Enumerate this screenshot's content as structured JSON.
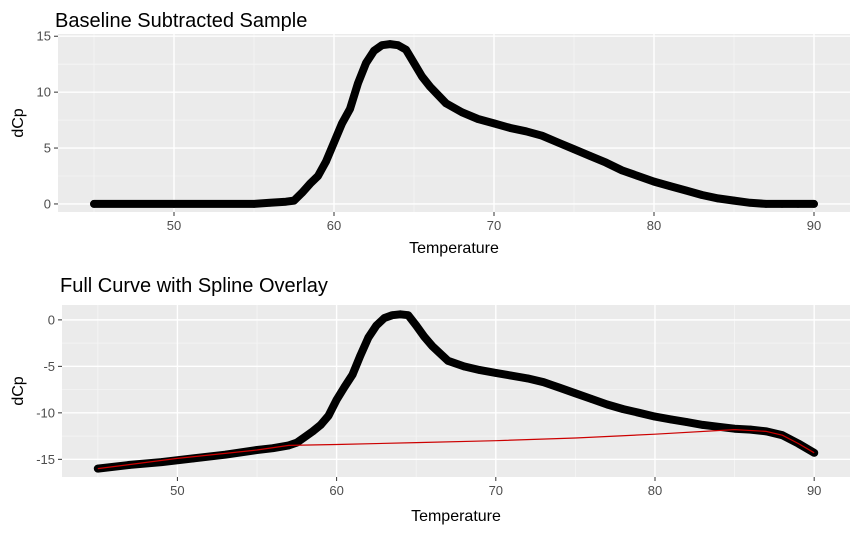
{
  "colors": {
    "panel_background": "#ebebeb",
    "grid_major": "#ffffff",
    "grid_minor": "#f5f5f5",
    "points": "#000000",
    "spline": "#cc0000"
  },
  "chart_data": [
    {
      "type": "scatter",
      "title": "Baseline Subtracted Sample",
      "xlabel": "Temperature",
      "ylabel": "dCp",
      "xlim": [
        42.75,
        92.25
      ],
      "ylim": [
        -0.72,
        15.2
      ],
      "xticks": [
        50,
        60,
        70,
        80,
        90
      ],
      "yticks": [
        0,
        5,
        10,
        15
      ],
      "grid": true,
      "legend": "none",
      "series": [
        {
          "x": [
            45,
            50,
            55,
            56,
            57,
            57.5,
            58,
            58.5,
            59,
            59.5,
            60,
            60.5,
            61,
            61.5,
            62,
            62.5,
            63,
            63.5,
            64,
            64.5,
            65,
            65.5,
            66,
            67,
            68,
            69,
            70,
            71,
            72,
            73,
            74,
            75,
            76,
            77,
            78,
            79,
            80,
            81,
            82,
            83,
            84,
            85,
            86,
            87,
            88,
            89,
            90
          ],
          "y": [
            0,
            0,
            0,
            0.1,
            0.2,
            0.3,
            1.0,
            1.8,
            2.5,
            3.8,
            5.5,
            7.2,
            8.5,
            10.8,
            12.6,
            13.7,
            14.2,
            14.3,
            14.2,
            13.8,
            12.6,
            11.4,
            10.5,
            9.0,
            8.2,
            7.6,
            7.2,
            6.8,
            6.5,
            6.1,
            5.5,
            4.9,
            4.3,
            3.7,
            3.0,
            2.5,
            2.0,
            1.6,
            1.2,
            0.8,
            0.5,
            0.3,
            0.1,
            0,
            0,
            0,
            0
          ]
        }
      ]
    },
    {
      "type": "scatter",
      "title": "Full Curve with Spline Overlay",
      "xlabel": "Temperature",
      "ylabel": "dCp",
      "xlim": [
        42.75,
        92.25
      ],
      "ylim": [
        -16.9,
        1.6
      ],
      "xticks": [
        50,
        60,
        70,
        80,
        90
      ],
      "yticks": [
        -15,
        -10,
        -5,
        0
      ],
      "grid": true,
      "legend": "none",
      "series": [
        {
          "x": [
            45,
            47,
            49,
            51,
            53,
            55,
            56,
            57,
            57.5,
            58,
            58.5,
            59,
            59.5,
            60,
            60.5,
            61,
            61.5,
            62,
            62.5,
            63,
            63.5,
            64,
            64.5,
            65,
            65.5,
            66,
            67,
            68,
            69,
            70,
            71,
            72,
            73,
            74,
            75,
            76,
            77,
            78,
            79,
            80,
            81,
            82,
            83,
            84,
            85,
            86,
            87,
            88,
            89,
            90
          ],
          "y": [
            -16.0,
            -15.6,
            -15.3,
            -14.9,
            -14.5,
            -14.0,
            -13.8,
            -13.5,
            -13.2,
            -12.6,
            -12.0,
            -11.3,
            -10.3,
            -8.6,
            -7.2,
            -5.9,
            -3.8,
            -1.9,
            -0.6,
            0.2,
            0.5,
            0.6,
            0.5,
            -0.6,
            -1.8,
            -2.8,
            -4.4,
            -5.0,
            -5.4,
            -5.7,
            -6.0,
            -6.3,
            -6.7,
            -7.3,
            -7.9,
            -8.5,
            -9.1,
            -9.6,
            -10.0,
            -10.4,
            -10.7,
            -11.0,
            -11.3,
            -11.5,
            -11.7,
            -11.8,
            -12.0,
            -12.4,
            -13.3,
            -14.3
          ]
        },
        {
          "name": "",
          "x": [
            45,
            50,
            55,
            57,
            60,
            65,
            70,
            75,
            80,
            85,
            87,
            88,
            89,
            90
          ],
          "y": [
            -16.0,
            -14.9,
            -14.0,
            -13.5,
            -13.4,
            -13.2,
            -13.0,
            -12.7,
            -12.3,
            -11.8,
            -12.0,
            -12.4,
            -13.3,
            -14.3
          ]
        }
      ]
    }
  ]
}
